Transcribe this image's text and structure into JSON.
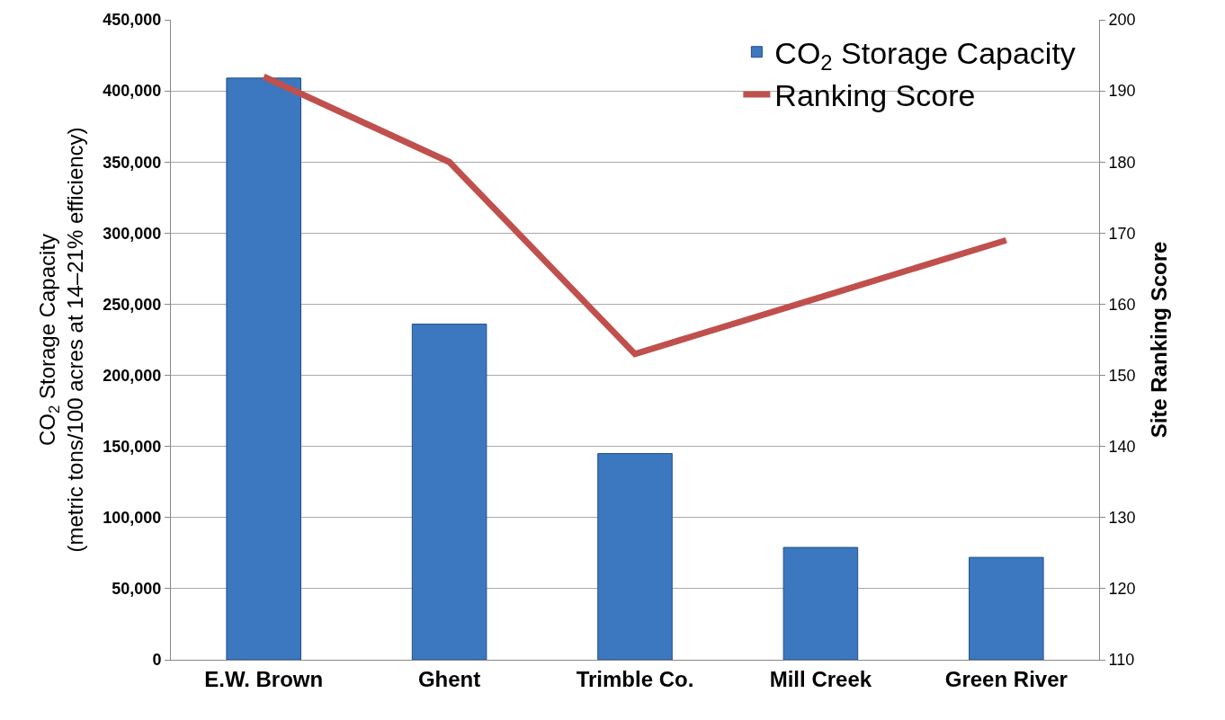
{
  "chart_data": {
    "type": "bar",
    "categories": [
      "E.W. Brown",
      "Ghent",
      "Trimble Co.",
      "Mill Creek",
      "Green River"
    ],
    "series": [
      {
        "name": "CO$_{2}$ Storage Capacity",
        "color": "#3b78c0",
        "values": [
          409000,
          236000,
          145000,
          79000,
          72000
        ]
      },
      {
        "name": "Ranking Score",
        "type": "line",
        "axis": "y2",
        "color": "#c0504d",
        "values": [
          192,
          180,
          153,
          161,
          169
        ]
      }
    ],
    "ylabel": "CO$_{2}$ Storage Capacity\n(metric tons/100 acres at 14–21% efficiency)",
    "y2label": "Site Ranking Score",
    "ylim": [
      0,
      450000
    ],
    "yticks": [
      {
        "value": 0,
        "label": "0"
      },
      {
        "value": 50000,
        "label": "50,000"
      },
      {
        "value": 100000,
        "label": "100,000"
      },
      {
        "value": 150000,
        "label": "150,000"
      },
      {
        "value": 200000,
        "label": "200,000"
      },
      {
        "value": 250000,
        "label": "250,000"
      },
      {
        "value": 300000,
        "label": "300,000"
      },
      {
        "value": 350000,
        "label": "350,000"
      },
      {
        "value": 400000,
        "label": "400,000"
      },
      {
        "value": 450000,
        "label": "450,000"
      }
    ],
    "y2lim": [
      110,
      200
    ],
    "y2ticks": [
      110,
      120,
      130,
      140,
      150,
      160,
      170,
      180,
      190,
      200
    ],
    "grid": "y",
    "legend": "top right",
    "marker": "none",
    "line_style": "solid"
  }
}
